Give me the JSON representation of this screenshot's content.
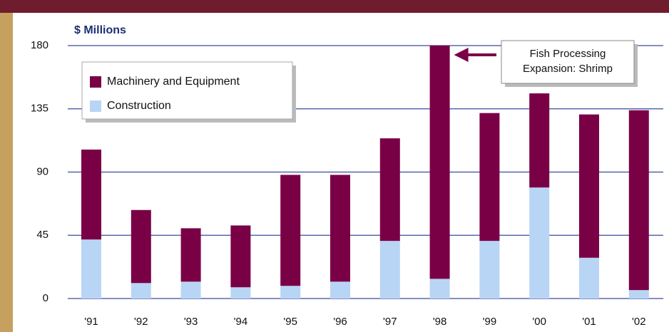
{
  "chart_data": {
    "type": "stacked-bar",
    "y_axis_label": "$ Millions",
    "categories": [
      "'91",
      "'92",
      "'93",
      "'94",
      "'95",
      "'96",
      "'97",
      "'98",
      "'99",
      "'00",
      "'01",
      "'02"
    ],
    "series": [
      {
        "name": "Machinery and Equipment",
        "color": "#7a0046",
        "values": [
          64,
          52,
          38,
          44,
          79,
          76,
          73,
          166,
          91,
          67,
          102,
          128
        ]
      },
      {
        "name": "Construction",
        "color": "#b9d5f5",
        "values": [
          42,
          11,
          12,
          8,
          9,
          12,
          41,
          14,
          41,
          79,
          29,
          6
        ]
      }
    ],
    "ylim": [
      0,
      180
    ],
    "yticks": [
      0,
      45,
      90,
      135,
      180
    ],
    "grid": true,
    "legend": "upper left",
    "annotation": [
      "Fish Processing",
      "Expansion: Shrimp"
    ]
  }
}
